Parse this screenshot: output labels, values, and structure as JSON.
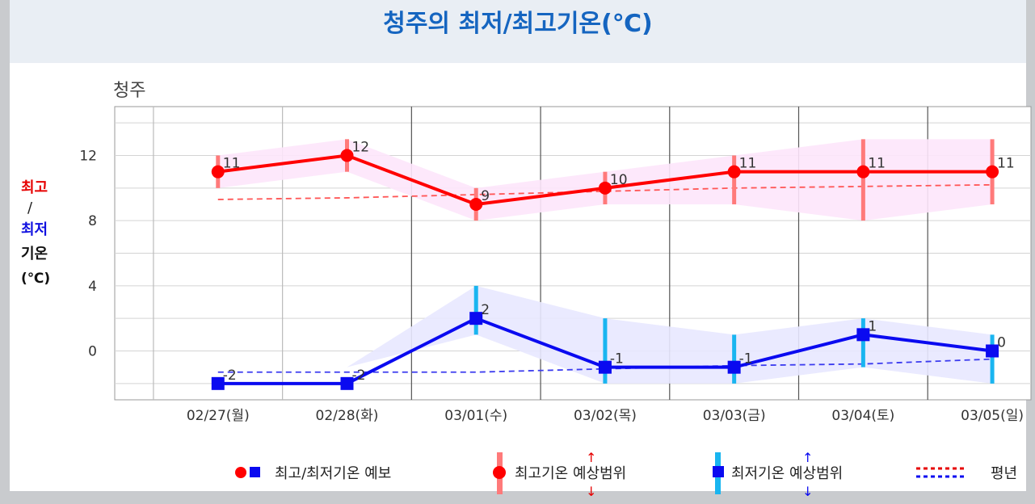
{
  "page_title": "청주의 최저/최고기온(℃)",
  "side_label": {
    "high": "최고",
    "slash": "/",
    "low": "최저",
    "word": "기온",
    "unit": "(℃)"
  },
  "colors": {
    "high": "#ff0000",
    "low": "#0a0af0",
    "high_range": "#ff7a7a",
    "low_range": "#19b5f0",
    "high_band": "#fde6fb",
    "low_band": "#e8e8ff",
    "title": "#1565c0"
  },
  "chart_data": {
    "type": "line",
    "title": "청주",
    "categories": [
      "02/27(월)",
      "02/28(화)",
      "03/01(수)",
      "03/02(목)",
      "03/03(금)",
      "03/04(토)",
      "03/05(일)"
    ],
    "ylim": [
      -3,
      15
    ],
    "yticks": [
      0,
      4,
      8,
      12
    ],
    "grid": true,
    "series": [
      {
        "name": "최고기온",
        "values": [
          11,
          12,
          9,
          10,
          11,
          11,
          11
        ],
        "range_low": [
          10,
          11,
          8,
          9,
          9,
          8,
          9
        ],
        "range_high": [
          12,
          13,
          10,
          11,
          12,
          13,
          13
        ],
        "normal": [
          9.3,
          9.4,
          9.6,
          9.8,
          10.0,
          10.1,
          10.2
        ]
      },
      {
        "name": "최저기온",
        "values": [
          -2,
          -2,
          2,
          -1,
          -1,
          1,
          0
        ],
        "range_low": [
          -2,
          -1,
          1,
          -2,
          -2,
          -1,
          -2
        ],
        "range_high": [
          -2,
          -1,
          4,
          2,
          1,
          2,
          1
        ],
        "normal": [
          -1.3,
          -1.3,
          -1.3,
          -1.1,
          -0.9,
          -0.8,
          -0.5
        ]
      }
    ]
  },
  "legend": {
    "forecast": "최고/최저기온 예보",
    "high_range": "최고기온 예상범위",
    "low_range": "최저기온 예상범위",
    "normal": "평년"
  }
}
